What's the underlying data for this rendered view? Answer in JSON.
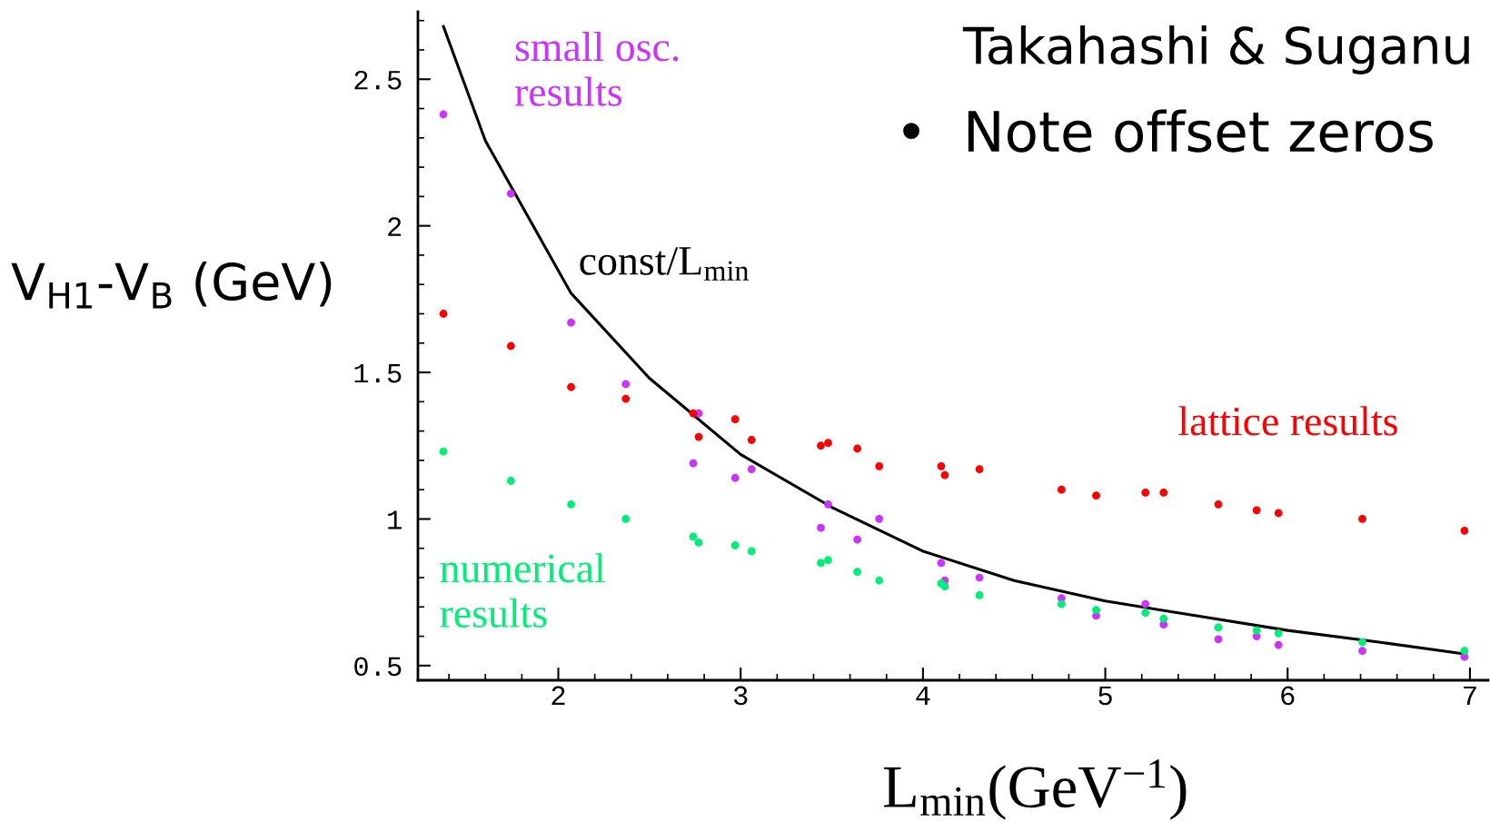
{
  "chart_data": {
    "type": "scatter",
    "xlabel": "L$_{min}$(GeV$^{−1}$)",
    "ylabel": "V$_{H1}$-V$_{B}$ (GeV)",
    "xlim": [
      1.23,
      7.1
    ],
    "xticks": [
      2,
      3,
      4,
      5,
      6,
      7
    ],
    "ylim": [
      0.45,
      2.73
    ],
    "yticks": [
      0.5,
      1,
      1.5,
      2,
      2.5
    ],
    "grid": false,
    "legend": false,
    "marker": "circle",
    "series": [
      {
        "name": "small osc.\nresults",
        "color": "#cc33ff",
        "x": [
          1.37,
          1.74,
          2.07,
          2.37,
          2.74,
          2.77,
          2.97,
          3.06,
          3.44,
          3.48,
          3.64,
          3.76,
          4.1,
          4.12,
          4.31,
          4.76,
          4.95,
          5.22,
          5.32,
          5.62,
          5.83,
          5.95,
          6.41,
          6.97
        ],
        "values": [
          2.38,
          2.11,
          1.67,
          1.46,
          1.19,
          1.36,
          1.14,
          1.17,
          0.97,
          1.05,
          0.93,
          1.0,
          0.85,
          0.79,
          0.8,
          0.73,
          0.67,
          0.71,
          0.64,
          0.59,
          0.6,
          0.57,
          0.55,
          0.53
        ]
      },
      {
        "name": "lattice results",
        "color": "#ff0000",
        "x": [
          1.37,
          1.74,
          2.07,
          2.37,
          2.74,
          2.77,
          2.97,
          3.06,
          3.44,
          3.48,
          3.64,
          3.76,
          4.1,
          4.12,
          4.31,
          4.76,
          4.95,
          5.22,
          5.32,
          5.62,
          5.83,
          5.95,
          6.41,
          6.97
        ],
        "values": [
          1.7,
          1.59,
          1.45,
          1.41,
          1.36,
          1.28,
          1.34,
          1.27,
          1.25,
          1.26,
          1.24,
          1.18,
          1.18,
          1.15,
          1.17,
          1.1,
          1.08,
          1.09,
          1.09,
          1.05,
          1.03,
          1.02,
          1.0,
          0.96
        ]
      },
      {
        "name": "numerical\nresults",
        "color": "#00ee77",
        "x": [
          1.37,
          1.74,
          2.07,
          2.37,
          2.74,
          2.77,
          2.97,
          3.06,
          3.44,
          3.48,
          3.64,
          3.76,
          4.1,
          4.12,
          4.31,
          4.76,
          4.95,
          5.22,
          5.32,
          5.62,
          5.83,
          5.95,
          6.41,
          6.97
        ],
        "values": [
          1.23,
          1.13,
          1.05,
          1.0,
          0.94,
          0.92,
          0.91,
          0.89,
          0.85,
          0.86,
          0.82,
          0.79,
          0.78,
          0.77,
          0.74,
          0.71,
          0.69,
          0.68,
          0.66,
          0.63,
          0.62,
          0.61,
          0.58,
          0.55
        ]
      },
      {
        "name": "const/L$_{min}$",
        "color": "#000000",
        "type": "line",
        "marker": "none",
        "line_style": "solid",
        "x": [
          1.37,
          1.6,
          2.07,
          2.5,
          3.0,
          3.5,
          4.0,
          4.5,
          5.0,
          5.5,
          6.0,
          6.5,
          6.97
        ],
        "values": [
          2.68,
          2.29,
          1.77,
          1.48,
          1.22,
          1.04,
          0.89,
          0.79,
          0.72,
          0.67,
          0.62,
          0.58,
          0.54
        ]
      }
    ],
    "annotations": [
      "Takahashi & Suganu",
      "•  Note offset zeros"
    ]
  }
}
